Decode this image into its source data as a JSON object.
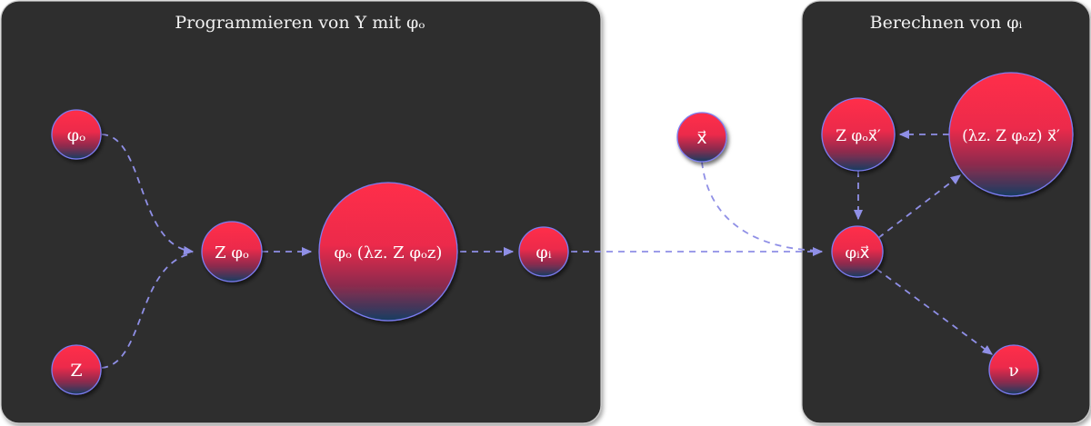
{
  "panels": {
    "left": {
      "title": "Programmieren von Y mit φₒ"
    },
    "right": {
      "title": "Berechnen von φᵢ"
    }
  },
  "nodes": {
    "phi_o": "φₒ",
    "z": "Z",
    "z_phi_o": "Z φₒ",
    "phi_o_lambda": "φₒ (λz. Z φₒz)",
    "phi_i": "φᵢ",
    "x_vec": "x⃗",
    "z_phi_o_x": "Z φₒx⃗′",
    "lambda_x": "(λz. Z φₒz) x⃗′",
    "phi_i_x": "φᵢx⃗",
    "nu": "ν"
  },
  "colors": {
    "panel_bg": "#2d2d2d",
    "node_top": "#ff2d4a",
    "node_bottom": "#1b3f63",
    "node_border": "#7b7bf0",
    "edge": "#8f8fe6"
  }
}
